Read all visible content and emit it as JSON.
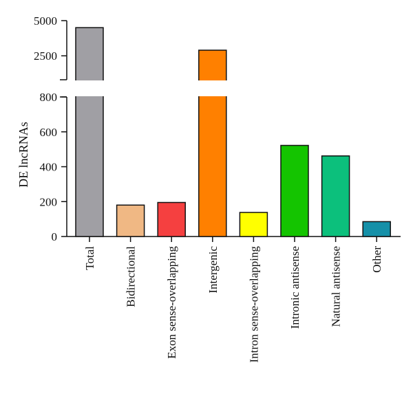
{
  "chart_data": {
    "type": "bar",
    "title": "",
    "xlabel": "",
    "ylabel": "DE lncRNAs",
    "categories": [
      "Total",
      "Bidirectional",
      "Exon sense-overlapping",
      "Intergenic",
      "Intron sense-overlapping",
      "Intronic antisense",
      "Natural antisense",
      "Other"
    ],
    "values": [
      4500,
      180,
      195,
      2900,
      138,
      522,
      462,
      85
    ],
    "colors": [
      "#a09fa4",
      "#f0b884",
      "#f54040",
      "#ff8000",
      "#ffff00",
      "#14c400",
      "#0cc07c",
      "#1590a8"
    ],
    "axis_break": true,
    "ylim_lower": [
      0,
      800
    ],
    "ylim_upper": [
      800,
      5000
    ],
    "yticks_lower": [
      0,
      200,
      400,
      600,
      800
    ],
    "yticks_upper": [
      2500,
      5000
    ],
    "grid": false,
    "legend": "none"
  }
}
